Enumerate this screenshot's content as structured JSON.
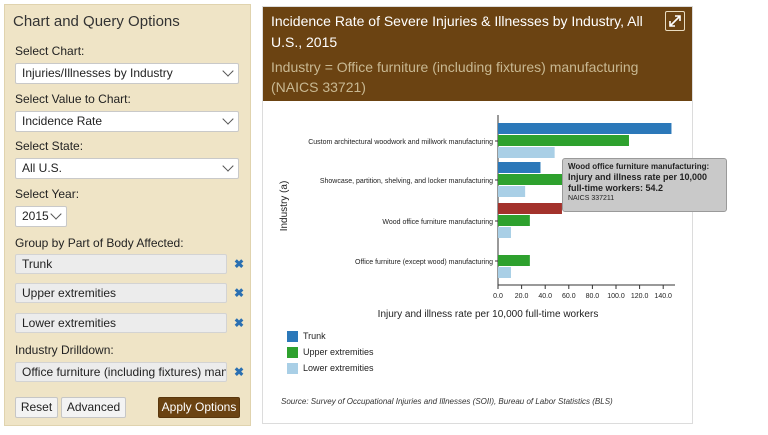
{
  "left_panel": {
    "title": "Chart and Query Options",
    "select_chart_label": "Select Chart:",
    "select_chart_value": "Injuries/Illnesses by Industry",
    "select_value_label": "Select Value to Chart:",
    "select_value_value": "Incidence Rate",
    "select_state_label": "Select State:",
    "select_state_value": "All U.S.",
    "select_year_label": "Select Year:",
    "select_year_value": "2015",
    "group_label": "Group by Part of Body Affected:",
    "groups": [
      "Trunk",
      "Upper extremities",
      "Lower extremities"
    ],
    "drilldown_label": "Industry Drilldown:",
    "drilldown_value": "Office furniture (including fixtures) manufactu",
    "reset_label": "Reset",
    "advanced_label": "Advanced",
    "apply_label": "Apply Options"
  },
  "right_panel": {
    "title": "Incidence Rate of Severe Injuries & Illnesses by Industry, All U.S., 2015",
    "subtitle": "Industry = Office furniture (including fixtures) manufacturing (NAICS 33721)",
    "source": "Source: Survey of Occupational Injuries and Illnesses (SOII), Bureau of Labor Statistics (BLS)",
    "tooltip": {
      "line1": "Wood office furniture manufacturing:",
      "line2": "Injury and illness rate per 10,000 full-time workers: 54.2",
      "line3": "NAICS 337211"
    }
  },
  "chart_data": {
    "type": "bar",
    "orientation": "horizontal",
    "categories": [
      "Custom architectural woodwork and millwork manufacturing",
      "Showcase, partition, shelving, and locker manufacturing",
      "Wood office furniture manufacturing",
      "Office furniture (except wood) manufacturing"
    ],
    "series": [
      {
        "name": "Trunk",
        "color": "#2b78b9",
        "values": [
          147,
          36,
          54.2,
          0
        ]
      },
      {
        "name": "Upper extremities",
        "color": "#2ea12e",
        "values": [
          111,
          85,
          27,
          27
        ]
      },
      {
        "name": "Lower extremities",
        "color": "#a9cfe6",
        "values": [
          48,
          23,
          11,
          11
        ]
      }
    ],
    "highlight": {
      "category_index": 2,
      "series_index": 0,
      "color": "#a3322c"
    },
    "xlabel": "Injury and illness rate per 10,000 full-time workers",
    "ylabel": "Industry (a)",
    "xlim": [
      0,
      150
    ],
    "xticks": [
      "0.0",
      "20.0",
      "40.0",
      "60.0",
      "80.0",
      "100.0",
      "120.0",
      "140.0"
    ],
    "legend_position": "bottom-left"
  }
}
